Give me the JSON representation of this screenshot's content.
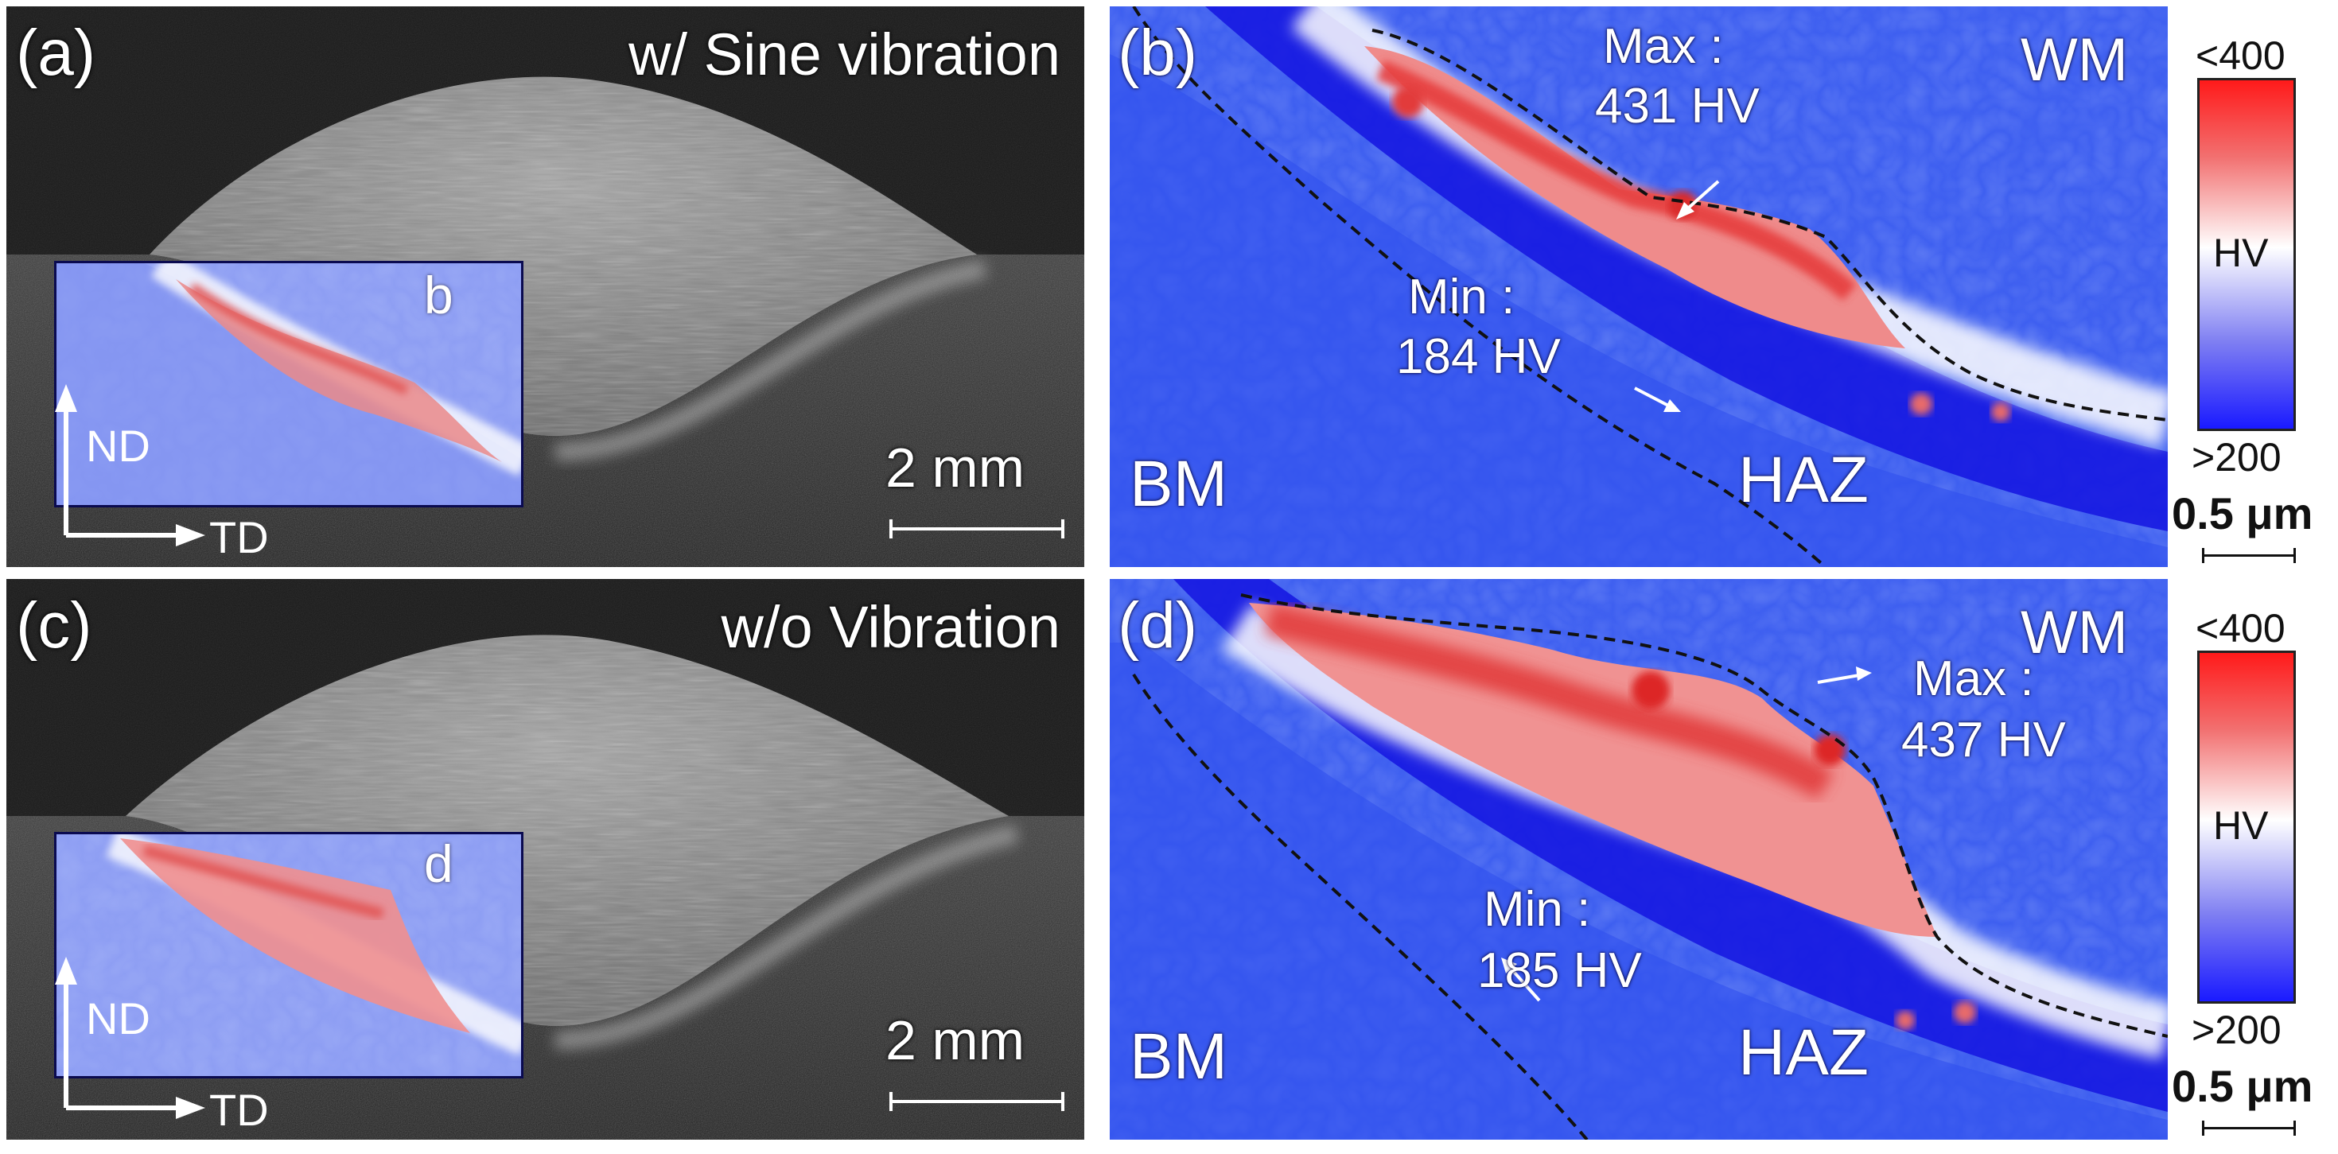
{
  "panels": {
    "a": {
      "tag": "(a)",
      "title": "w/ Sine vibration",
      "scale": "2 mm",
      "inset_tag": "b",
      "axis_nd": "ND",
      "axis_td": "TD"
    },
    "b": {
      "tag": "(b)",
      "max_label": "Max :",
      "max_value": "431 HV",
      "min_label": "Min :",
      "min_value": "184 HV",
      "wm": "WM",
      "bm": "BM",
      "haz": "HAZ",
      "colorbar": {
        "top": "<400",
        "mid": "HV",
        "bottom": ">200",
        "scale": "0.5 μm"
      }
    },
    "c": {
      "tag": "(c)",
      "title": "w/o Vibration",
      "scale": "2 mm",
      "inset_tag": "d",
      "axis_nd": "ND",
      "axis_td": "TD"
    },
    "d": {
      "tag": "(d)",
      "max_label": "Max :",
      "max_value": "437 HV",
      "min_label": "Min :",
      "min_value": "185 HV",
      "wm": "WM",
      "bm": "BM",
      "haz": "HAZ",
      "colorbar": {
        "top": "<400",
        "mid": "HV",
        "bottom": ">200",
        "scale": "0.5 μm"
      }
    }
  },
  "colors": {
    "map_blue": "#3a5cf0",
    "haz_blue": "#1a1ae0",
    "hard_red": "#e83a3a",
    "micro_dark": "#1c1c1c",
    "micro_bead": "#8a8a8a"
  }
}
